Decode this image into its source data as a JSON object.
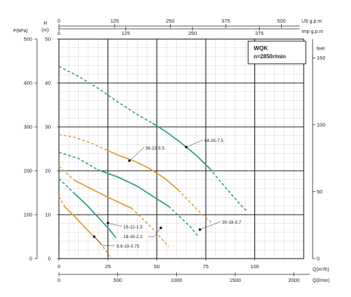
{
  "chart_data": {
    "type": "line",
    "title": "WQK",
    "subtitle": "n=2850r/min",
    "axes": {
      "left_pressure": {
        "label": "P(kPa)",
        "ticks": [
          "0",
          "100",
          "200",
          "300",
          "400",
          "500"
        ],
        "range": [
          0,
          500
        ]
      },
      "left_head_m": {
        "label": "H",
        "unit": "(m)",
        "ticks": [
          "0",
          "10",
          "20",
          "30",
          "40",
          "50"
        ],
        "range": [
          0,
          50
        ]
      },
      "right_head_ft": {
        "label": "feet",
        "ticks": [
          "0",
          "50",
          "100",
          "150"
        ],
        "range": [
          0,
          164
        ]
      },
      "top_us_gpm": {
        "label": "US g.p.m",
        "ticks": [
          "0",
          "125",
          "250",
          "375",
          "500"
        ],
        "max": 550
      },
      "top_imp_gpm": {
        "label": "Imp g.p.m",
        "ticks": [
          "0",
          "125",
          "250",
          "375"
        ],
        "max": 458
      },
      "bottom_flow_m3h": {
        "label": "Q(m³/h)",
        "ticks": [
          "0",
          "25",
          "50",
          "75",
          "100"
        ],
        "range": [
          0,
          125
        ]
      },
      "bottom_flow_lmin": {
        "label": "Q(l/min)",
        "ticks": [
          "0",
          "500",
          "1000",
          "1500",
          "2000"
        ],
        "max": 2083
      }
    },
    "grid": true,
    "series": [
      {
        "name": "48-25-7.5",
        "color": "#2a9c8e",
        "solid": [
          [
            48,
            30.8
          ],
          [
            55,
            28.8
          ],
          [
            62,
            26.5
          ],
          [
            70,
            23.6
          ],
          [
            77,
            20.5
          ]
        ],
        "dashed_left": [
          [
            0,
            43.8
          ],
          [
            10,
            41.5
          ],
          [
            20,
            38.8
          ],
          [
            30,
            35.7
          ],
          [
            40,
            32.8
          ],
          [
            48,
            30.8
          ]
        ],
        "dashed_right": [
          [
            77,
            20.5
          ],
          [
            82,
            17.8
          ],
          [
            87,
            15.2
          ],
          [
            92,
            12.6
          ],
          [
            96,
            10.8
          ]
        ]
      },
      {
        "name": "36-22-5.5",
        "color": "#e59a3a",
        "solid": [
          [
            24,
            24.8
          ],
          [
            30,
            23.6
          ],
          [
            38,
            22.3
          ],
          [
            46,
            20.6
          ],
          [
            54,
            18.3
          ],
          [
            61,
            15.6
          ]
        ],
        "dashed_left": [
          [
            0,
            28.3
          ],
          [
            8,
            27.6
          ],
          [
            16,
            26.4
          ],
          [
            24,
            24.8
          ]
        ],
        "dashed_right": [
          [
            61,
            15.6
          ],
          [
            67,
            12.8
          ],
          [
            73,
            10.1
          ],
          [
            78,
            8.2
          ]
        ]
      },
      {
        "name": "30-18-3.7",
        "color": "#2a9c8e",
        "solid": [
          [
            20,
            20.2
          ],
          [
            30,
            18.6
          ],
          [
            40,
            16.5
          ],
          [
            50,
            13.6
          ],
          [
            56,
            11.9
          ]
        ],
        "dashed_left": [
          [
            0,
            24.2
          ],
          [
            10,
            22.8
          ],
          [
            20,
            20.2
          ]
        ],
        "dashed_right": [
          [
            56,
            11.9
          ],
          [
            62,
            9.4
          ],
          [
            67,
            7.3
          ],
          [
            71,
            5.1
          ]
        ]
      },
      {
        "name": "18-16-2.2",
        "color": "#e59a3a",
        "solid": [
          [
            8,
            17.8
          ],
          [
            16,
            16
          ],
          [
            24,
            14.2
          ],
          [
            32,
            12.5
          ],
          [
            37,
            11.5
          ]
        ],
        "dashed_left": [
          [
            0,
            21
          ],
          [
            8,
            17.8
          ]
        ],
        "dashed_right": [
          [
            37,
            11.5
          ],
          [
            44,
            8.5
          ],
          [
            50,
            5.8
          ],
          [
            56,
            2.7
          ]
        ]
      },
      {
        "name": "15-12-1.5",
        "color": "#2a9c8e",
        "solid": [
          [
            8,
            14.8
          ],
          [
            14,
            12.3
          ],
          [
            20,
            9.4
          ],
          [
            26,
            6.5
          ],
          [
            29,
            4.8
          ]
        ],
        "dashed_left": [
          [
            0,
            18.2
          ],
          [
            8,
            14.8
          ]
        ],
        "dashed_right": []
      },
      {
        "name": "9.6-10-0.75",
        "color": "#e59a3a",
        "solid": [
          [
            3,
            11.8
          ],
          [
            8,
            9.6
          ],
          [
            13,
            7.2
          ],
          [
            17,
            5.4
          ],
          [
            21,
            3.6
          ]
        ],
        "dashed_left": [
          [
            0,
            14.2
          ],
          [
            3,
            11.8
          ]
        ],
        "dashed_right": [
          [
            21,
            3.6
          ],
          [
            24,
            1.8
          ],
          [
            26,
            0.4
          ]
        ]
      }
    ],
    "annotations": [
      {
        "text": "48-25-7.5",
        "target": [
          65,
          25.4
        ]
      },
      {
        "text": "36-22-5.5",
        "target": [
          36,
          22.3
        ]
      },
      {
        "text": "30-18-3.7",
        "target": [
          72,
          6.6
        ]
      },
      {
        "text": "15-12-1.5",
        "target": [
          25,
          8.1
        ]
      },
      {
        "text": "18-16-2.2",
        "target": [
          52,
          7.0
        ]
      },
      {
        "text": "9.6-10-0.75",
        "target": [
          18,
          5.0
        ]
      }
    ]
  }
}
